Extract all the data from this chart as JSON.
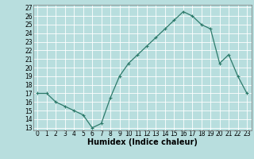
{
  "x": [
    0,
    1,
    2,
    3,
    4,
    5,
    6,
    7,
    8,
    9,
    10,
    11,
    12,
    13,
    14,
    15,
    16,
    17,
    18,
    19,
    20,
    21,
    22,
    23
  ],
  "y": [
    17,
    17,
    16,
    15.5,
    15,
    14.5,
    13,
    13.5,
    16.5,
    19,
    20.5,
    21.5,
    22.5,
    23.5,
    24.5,
    25.5,
    26.5,
    26,
    25,
    24.5,
    20.5,
    21.5,
    19,
    17
  ],
  "xlabel": "Humidex (Indice chaleur)",
  "ylim_min": 13,
  "ylim_max": 27,
  "xlim_min": 0,
  "xlim_max": 23,
  "yticks": [
    13,
    14,
    15,
    16,
    17,
    18,
    19,
    20,
    21,
    22,
    23,
    24,
    25,
    26,
    27
  ],
  "xticks": [
    0,
    1,
    2,
    3,
    4,
    5,
    6,
    7,
    8,
    9,
    10,
    11,
    12,
    13,
    14,
    15,
    16,
    17,
    18,
    19,
    20,
    21,
    22,
    23
  ],
  "line_color": "#2d7a6a",
  "bg_color": "#b8dede",
  "grid_color": "#ffffff",
  "label_fontsize": 7,
  "tick_fontsize": 5.5
}
